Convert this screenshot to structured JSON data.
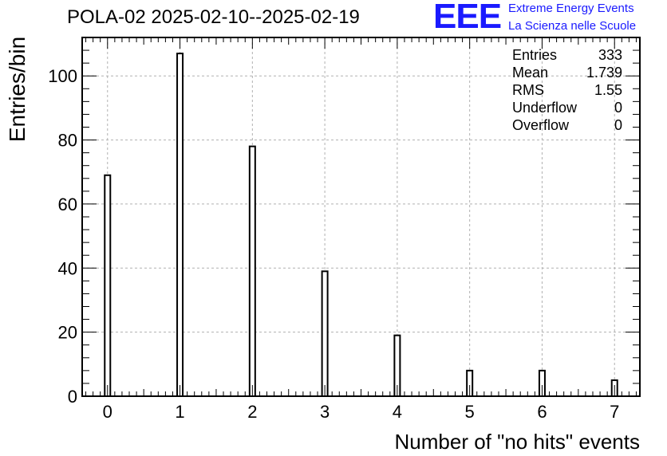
{
  "header": {
    "title": "POLA-02 2025-02-10--2025-02-19",
    "logo_letters": "EEE",
    "logo_line1": "Extreme Energy Events",
    "logo_line2": "La Scienza nelle Scuole"
  },
  "stats_box": {
    "rows": [
      {
        "label": "Entries",
        "value": "333"
      },
      {
        "label": "Mean",
        "value": "1.739"
      },
      {
        "label": "RMS",
        "value": "1.55"
      },
      {
        "label": "Underflow",
        "value": "0"
      },
      {
        "label": "Overflow",
        "value": "0"
      }
    ]
  },
  "chart_data": {
    "type": "bar",
    "title": "POLA-02 2025-02-10--2025-02-19",
    "xlabel": "Number of \"no hits\" events",
    "ylabel": "Entries/bin",
    "categories": [
      "0",
      "1",
      "2",
      "3",
      "4",
      "5",
      "6",
      "7"
    ],
    "x": [
      0,
      1,
      2,
      3,
      4,
      5,
      6,
      7
    ],
    "values": [
      69,
      107,
      78,
      39,
      19,
      8,
      8,
      5
    ],
    "xlim": [
      -0.35,
      7.35
    ],
    "ylim": [
      0,
      112
    ],
    "xticks": [
      0,
      1,
      2,
      3,
      4,
      5,
      6,
      7
    ],
    "yticks": [
      0,
      20,
      40,
      60,
      80,
      100
    ],
    "grid": true,
    "legend": "none",
    "colors": {
      "bar_fill": "#ffffff",
      "bar_stroke": "#000000",
      "grid": "#b0b0b0"
    }
  }
}
